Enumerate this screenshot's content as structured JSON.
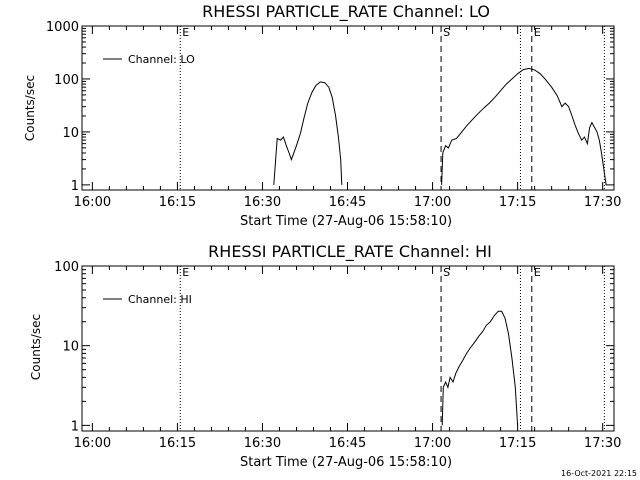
{
  "footer_timestamp": "16-Oct-2021 22:15",
  "chart_data": [
    {
      "type": "line",
      "title": "RHESSI PARTICLE_RATE Channel: LO",
      "xlabel": "Start Time (27-Aug-06 15:58:10)",
      "ylabel": "Counts/sec",
      "x_ticks": [
        "16:00",
        "16:15",
        "16:30",
        "16:45",
        "17:00",
        "17:15",
        "17:30"
      ],
      "x_tick_minutes": [
        960,
        975,
        990,
        1005,
        1020,
        1035,
        1050
      ],
      "xlim_minutes": [
        958.17,
        1052.0
      ],
      "yscale": "log",
      "ylim": [
        0.8,
        1000
      ],
      "y_ticks": [
        "1000",
        "100",
        "10",
        "1"
      ],
      "y_tick_values": [
        1000,
        100,
        10,
        1
      ],
      "legend": {
        "placement": "top-left",
        "label": "Channel: LO"
      },
      "color": "#000000",
      "vlines": [
        {
          "minute": 975.5,
          "style": "dotted",
          "label": "E"
        },
        {
          "minute": 1021.5,
          "style": "dashed",
          "label": "S"
        },
        {
          "minute": 1035.5,
          "style": "dotted",
          "label": ""
        },
        {
          "minute": 1037.5,
          "style": "dashed",
          "label": "E"
        },
        {
          "minute": 1050.3,
          "style": "dotted",
          "label": ""
        }
      ],
      "series": [
        {
          "segments": [
            [
              [
                992.0,
                1.0
              ],
              [
                992.6,
                7.5
              ],
              [
                993.2,
                7.0
              ],
              [
                993.7,
                8.0
              ],
              [
                994.2,
                5.5
              ],
              [
                994.7,
                4.0
              ],
              [
                995.1,
                3.0
              ],
              [
                995.6,
                4.2
              ],
              [
                996.1,
                6.0
              ],
              [
                996.7,
                9.5
              ],
              [
                997.3,
                18
              ],
              [
                998.0,
                35
              ],
              [
                998.7,
                55
              ],
              [
                999.4,
                75
              ],
              [
                1000.2,
                88
              ],
              [
                1001.0,
                85
              ],
              [
                1001.7,
                70
              ],
              [
                1002.3,
                45
              ],
              [
                1002.9,
                20
              ],
              [
                1003.4,
                8
              ],
              [
                1003.8,
                3
              ],
              [
                1004.0,
                1.0
              ]
            ],
            [
              [
                1021.6,
                1.0
              ],
              [
                1021.8,
                4.0
              ],
              [
                1022.3,
                5.5
              ],
              [
                1022.8,
                5.0
              ],
              [
                1023.4,
                7.0
              ],
              [
                1024.2,
                7.5
              ],
              [
                1025.0,
                9.5
              ],
              [
                1026.0,
                13
              ],
              [
                1027.0,
                17
              ],
              [
                1028.0,
                22
              ],
              [
                1029.0,
                28
              ],
              [
                1030.0,
                35
              ],
              [
                1031.0,
                45
              ],
              [
                1032.0,
                60
              ],
              [
                1033.0,
                80
              ],
              [
                1034.0,
                100
              ],
              [
                1035.0,
                125
              ],
              [
                1036.0,
                150
              ],
              [
                1037.0,
                158
              ],
              [
                1038.0,
                148
              ],
              [
                1039.0,
                125
              ],
              [
                1040.0,
                95
              ],
              [
                1041.0,
                70
              ],
              [
                1042.0,
                48
              ],
              [
                1042.8,
                30
              ],
              [
                1043.4,
                35
              ],
              [
                1044.0,
                30
              ],
              [
                1044.6,
                20
              ],
              [
                1045.2,
                13
              ],
              [
                1045.8,
                9
              ],
              [
                1046.3,
                7
              ],
              [
                1046.8,
                8
              ],
              [
                1047.3,
                6
              ],
              [
                1047.7,
                12
              ],
              [
                1048.1,
                15
              ],
              [
                1048.6,
                12
              ],
              [
                1049.0,
                10
              ],
              [
                1049.4,
                7
              ],
              [
                1049.8,
                4
              ],
              [
                1050.2,
                2
              ],
              [
                1050.6,
                1.0
              ]
            ]
          ]
        }
      ]
    },
    {
      "type": "line",
      "title": "RHESSI PARTICLE_RATE Channel: HI",
      "xlabel": "Start Time (27-Aug-06 15:58:10)",
      "ylabel": "Counts/sec",
      "x_ticks": [
        "16:00",
        "16:15",
        "16:30",
        "16:45",
        "17:00",
        "17:15",
        "17:30"
      ],
      "x_tick_minutes": [
        960,
        975,
        990,
        1005,
        1020,
        1035,
        1050
      ],
      "xlim_minutes": [
        958.17,
        1052.0
      ],
      "yscale": "log",
      "ylim": [
        0.85,
        100
      ],
      "y_ticks": [
        "100",
        "10",
        "1"
      ],
      "y_tick_values": [
        100,
        10,
        1
      ],
      "legend": {
        "placement": "top-left",
        "label": "Channel: HI"
      },
      "color": "#000000",
      "vlines": [
        {
          "minute": 975.5,
          "style": "dotted",
          "label": "E"
        },
        {
          "minute": 1021.5,
          "style": "dashed",
          "label": "S"
        },
        {
          "minute": 1035.5,
          "style": "dotted",
          "label": ""
        },
        {
          "minute": 1037.5,
          "style": "dashed",
          "label": "E"
        },
        {
          "minute": 1050.3,
          "style": "dotted",
          "label": ""
        }
      ],
      "series": [
        {
          "segments": [
            [
              [
                1021.7,
                1.0
              ],
              [
                1021.9,
                3.0
              ],
              [
                1022.3,
                3.5
              ],
              [
                1022.7,
                3.0
              ],
              [
                1023.1,
                4.0
              ],
              [
                1023.6,
                3.5
              ],
              [
                1024.1,
                4.5
              ],
              [
                1024.7,
                5.5
              ],
              [
                1025.3,
                6.5
              ],
              [
                1026.0,
                8.0
              ],
              [
                1026.7,
                9.5
              ],
              [
                1027.4,
                11
              ],
              [
                1028.1,
                13
              ],
              [
                1028.8,
                15
              ],
              [
                1029.5,
                18
              ],
              [
                1030.2,
                20
              ],
              [
                1030.9,
                24
              ],
              [
                1031.6,
                27
              ],
              [
                1032.2,
                27
              ],
              [
                1032.8,
                22
              ],
              [
                1033.4,
                14
              ],
              [
                1034.0,
                7
              ],
              [
                1034.6,
                3
              ],
              [
                1035.0,
                1.0
              ]
            ]
          ]
        }
      ]
    }
  ]
}
